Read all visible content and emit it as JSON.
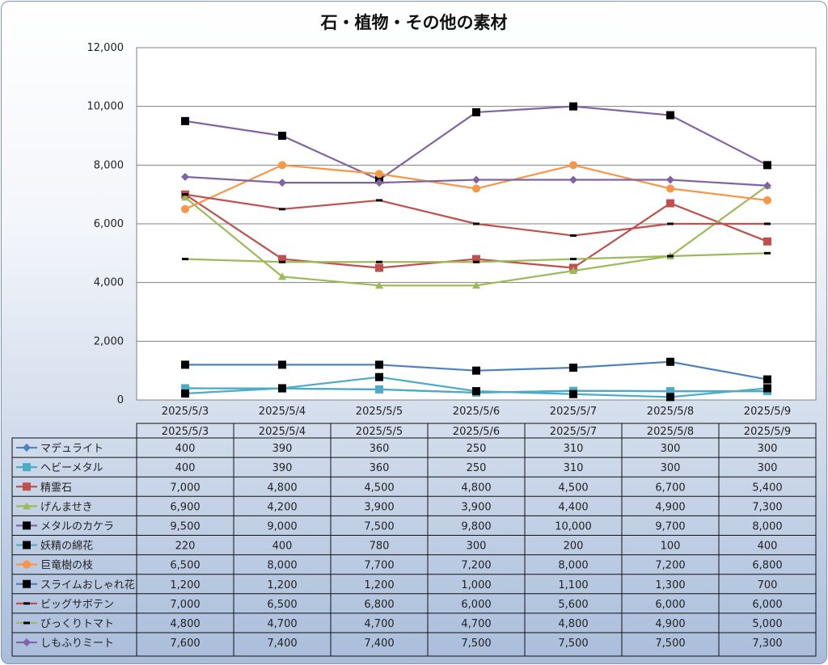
{
  "chart_data": {
    "type": "line",
    "title": "石・植物・その他の素材",
    "categories": [
      "2025/5/3",
      "2025/5/4",
      "2025/5/5",
      "2025/5/6",
      "2025/5/7",
      "2025/5/8",
      "2025/5/9"
    ],
    "ylim": [
      0,
      12000
    ],
    "yticks": [
      "0",
      "2,000",
      "4,000",
      "6,000",
      "8,000",
      "10,000",
      "12,000"
    ],
    "grid": true,
    "legend_placement": "data-table",
    "series": [
      {
        "name": "マデュライト",
        "values": [
          400,
          390,
          360,
          250,
          310,
          300,
          300
        ],
        "labels": [
          "400",
          "390",
          "360",
          "250",
          "310",
          "300",
          "300"
        ],
        "color": "#4f81bd",
        "marker": "diamond"
      },
      {
        "name": "ヘビーメタル",
        "values": [
          400,
          390,
          360,
          250,
          310,
          300,
          300
        ],
        "labels": [
          "400",
          "390",
          "360",
          "250",
          "310",
          "300",
          "300"
        ],
        "color": "#4bacc6",
        "marker": "square"
      },
      {
        "name": "精霊石",
        "values": [
          7000,
          4800,
          4500,
          4800,
          4500,
          6700,
          5400
        ],
        "labels": [
          "7,000",
          "4,800",
          "4,500",
          "4,800",
          "4,500",
          "6,700",
          "5,400"
        ],
        "color": "#c0504d",
        "marker": "square"
      },
      {
        "name": "げんませき",
        "values": [
          6900,
          4200,
          3900,
          3900,
          4400,
          4900,
          7300
        ],
        "labels": [
          "6,900",
          "4,200",
          "3,900",
          "3,900",
          "4,400",
          "4,900",
          "7,300"
        ],
        "color": "#9bbb59",
        "marker": "triangle"
      },
      {
        "name": "メタルのカケラ",
        "values": [
          9500,
          9000,
          7500,
          9800,
          10000,
          9700,
          8000
        ],
        "labels": [
          "9,500",
          "9,000",
          "7,500",
          "9,800",
          "10,000",
          "9,700",
          "8,000"
        ],
        "color": "#8064a2",
        "marker": "blacksquare"
      },
      {
        "name": "妖精の綿花",
        "values": [
          220,
          400,
          780,
          300,
          200,
          100,
          400
        ],
        "labels": [
          "220",
          "400",
          "780",
          "300",
          "200",
          "100",
          "400"
        ],
        "color": "#4bacc6",
        "marker": "blacksquare"
      },
      {
        "name": "巨竜樹の枝",
        "values": [
          6500,
          8000,
          7700,
          7200,
          8000,
          7200,
          6800
        ],
        "labels": [
          "6,500",
          "8,000",
          "7,700",
          "7,200",
          "8,000",
          "7,200",
          "6,800"
        ],
        "color": "#f79646",
        "marker": "circle"
      },
      {
        "name": "スライムおしゃれ花",
        "values": [
          1200,
          1200,
          1200,
          1000,
          1100,
          1300,
          700
        ],
        "labels": [
          "1,200",
          "1,200",
          "1,200",
          "1,000",
          "1,100",
          "1,300",
          "700"
        ],
        "color": "#4f81bd",
        "marker": "blacksquare"
      },
      {
        "name": "ビッグサボテン",
        "values": [
          7000,
          6500,
          6800,
          6000,
          5600,
          6000,
          6000
        ],
        "labels": [
          "7,000",
          "6,500",
          "6,800",
          "6,000",
          "5,600",
          "6,000",
          "6,000"
        ],
        "color": "#c0504d",
        "marker": "dash"
      },
      {
        "name": "びっくりトマト",
        "values": [
          4800,
          4700,
          4700,
          4700,
          4800,
          4900,
          5000
        ],
        "labels": [
          "4,800",
          "4,700",
          "4,700",
          "4,700",
          "4,800",
          "4,900",
          "5,000"
        ],
        "color": "#9bbb59",
        "marker": "dash"
      },
      {
        "name": "しもふりミート",
        "values": [
          7600,
          7400,
          7400,
          7500,
          7500,
          7500,
          7300
        ],
        "labels": [
          "7,600",
          "7,400",
          "7,400",
          "7,500",
          "7,500",
          "7,500",
          "7,300"
        ],
        "color": "#8064a2",
        "marker": "diamond"
      }
    ]
  }
}
